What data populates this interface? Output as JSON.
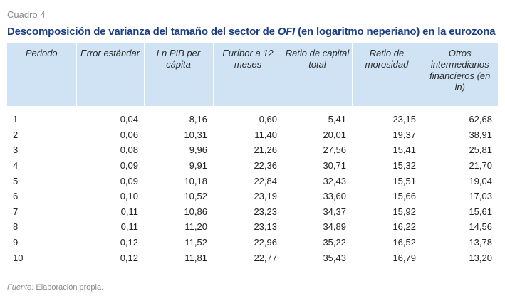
{
  "table_label": "Cuadro 4",
  "title": {
    "before": "Descomposición de varianza del tamaño del sector de ",
    "italic": "OFI",
    "after": " (en logaritmo neperiano) en la eurozona"
  },
  "columns": [
    "Periodo",
    "Error estándar",
    "Ln PIB per cápita",
    "Euríbor a 12 meses",
    "Ratio de capital total",
    "Ratio de morosidad",
    "Otros intermediarios financieros (en ln)"
  ],
  "rows": [
    [
      "1",
      "0,04",
      "8,16",
      "0,60",
      "5,41",
      "23,15",
      "62,68"
    ],
    [
      "2",
      "0,06",
      "10,31",
      "11,40",
      "20,01",
      "19,37",
      "38,91"
    ],
    [
      "3",
      "0,08",
      "9,96",
      "21,26",
      "27,56",
      "15,41",
      "25,81"
    ],
    [
      "4",
      "0,09",
      "9,91",
      "22,36",
      "30,71",
      "15,32",
      "21,70"
    ],
    [
      "5",
      "0,09",
      "10,18",
      "22,84",
      "32,43",
      "15,51",
      "19,04"
    ],
    [
      "6",
      "0,10",
      "10,52",
      "23,19",
      "33,60",
      "15,66",
      "17,03"
    ],
    [
      "7",
      "0,11",
      "10,86",
      "23,23",
      "34,37",
      "15,92",
      "15,61"
    ],
    [
      "8",
      "0,11",
      "11,20",
      "23,13",
      "34,89",
      "16,22",
      "14,56"
    ],
    [
      "9",
      "0,12",
      "11,52",
      "22,96",
      "35,22",
      "16,52",
      "13,78"
    ],
    [
      "10",
      "0,12",
      "11,81",
      "22,77",
      "35,43",
      "16,79",
      "13,20"
    ]
  ],
  "source": {
    "label": "Fuente:",
    "text": " Elaboración propia."
  },
  "colors": {
    "title": "#1c3f84",
    "header_bg": "#cfe3f5",
    "rule": "#9ac0e6",
    "muted_text": "#8a8a8a"
  }
}
